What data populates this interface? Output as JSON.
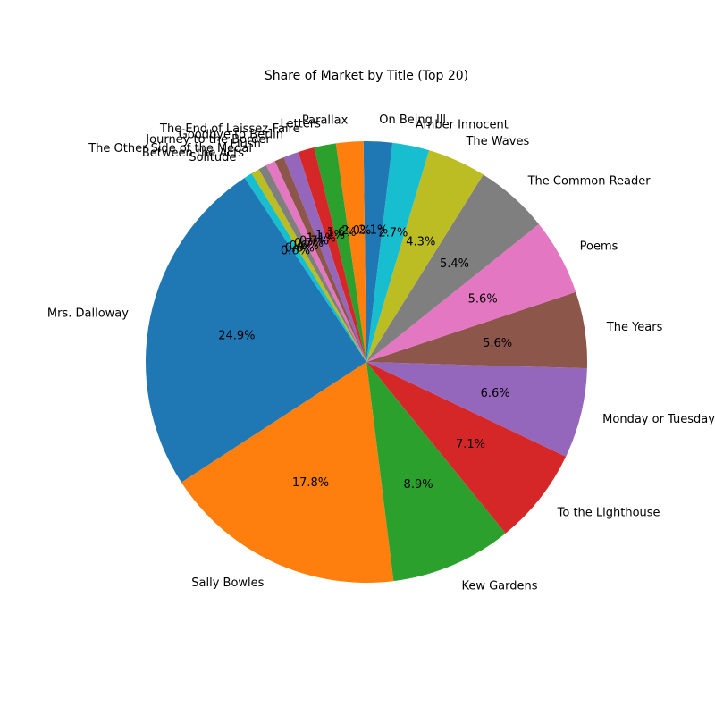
{
  "chart_data": {
    "type": "pie",
    "title": "Share of Market by Title (Top 20)",
    "start_angle_deg": 123.5,
    "direction": "counterclockwise",
    "slices": [
      {
        "label": "Mrs. Dalloway",
        "value": 24.9,
        "pct_label": "24.9%",
        "color": "#1f77b4"
      },
      {
        "label": "Sally Bowles",
        "value": 17.8,
        "pct_label": "17.8%",
        "color": "#ff7f0e"
      },
      {
        "label": "Kew Gardens",
        "value": 8.9,
        "pct_label": "8.9%",
        "color": "#2ca02c"
      },
      {
        "label": "To the Lighthouse",
        "value": 7.1,
        "pct_label": "7.1%",
        "color": "#d62728"
      },
      {
        "label": "Monday or Tuesday",
        "value": 6.6,
        "pct_label": "6.6%",
        "color": "#9467bd"
      },
      {
        "label": "The Years",
        "value": 5.6,
        "pct_label": "5.6%",
        "color": "#8c564b"
      },
      {
        "label": "Poems",
        "value": 5.6,
        "pct_label": "5.6%",
        "color": "#e377c2"
      },
      {
        "label": "The Common Reader",
        "value": 5.4,
        "pct_label": "5.4%",
        "color": "#7f7f7f"
      },
      {
        "label": "The Waves",
        "value": 4.3,
        "pct_label": "4.3%",
        "color": "#bcbd22"
      },
      {
        "label": "Amber Innocent",
        "value": 2.7,
        "pct_label": "2.7%",
        "color": "#17becf"
      },
      {
        "label": "On Being Ill",
        "value": 2.1,
        "pct_label": "2.1%",
        "color": "#1f77b4"
      },
      {
        "label": "Parallax",
        "value": 2.0,
        "pct_label": "2.0%",
        "color": "#ff7f0e"
      },
      {
        "label": "Letters",
        "value": 1.6,
        "pct_label": "1.6%",
        "color": "#2ca02c"
      },
      {
        "label": "The End of Laissez-Faire",
        "value": 1.2,
        "pct_label": "1.2%",
        "color": "#d62728"
      },
      {
        "label": "Goodbye to Berlin",
        "value": 1.1,
        "pct_label": "1.1%",
        "color": "#9467bd"
      },
      {
        "label": "Journey to the Border",
        "value": 0.7,
        "pct_label": "0.7%",
        "color": "#8c564b"
      },
      {
        "label": "Flush",
        "value": 0.7,
        "pct_label": "0.7%",
        "color": "#e377c2"
      },
      {
        "label": "The Other Side of the Medal",
        "value": 0.6,
        "pct_label": "0.6%",
        "color": "#7f7f7f"
      },
      {
        "label": "Between the Acts",
        "value": 0.6,
        "pct_label": "0.6%",
        "color": "#bcbd22"
      },
      {
        "label": "Solitude",
        "value": 0.6,
        "pct_label": "0.6%",
        "color": "#17becf"
      }
    ]
  }
}
